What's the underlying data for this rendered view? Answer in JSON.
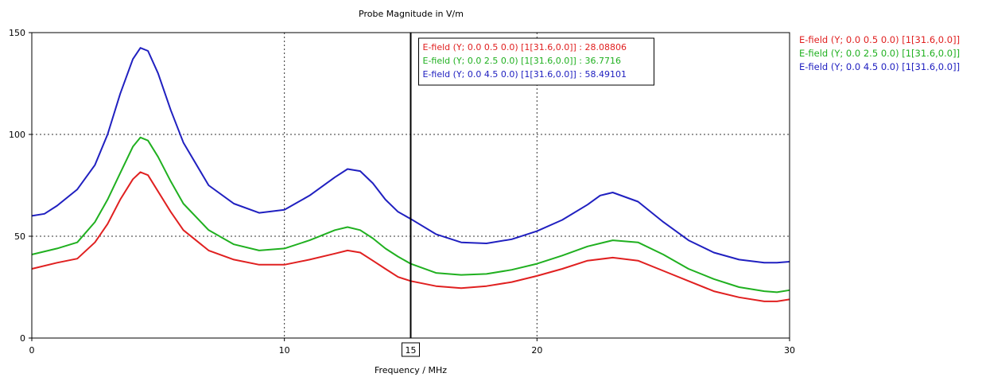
{
  "chart_data": {
    "type": "line",
    "title": "Probe Magnitude in V/m",
    "xlabel": "Frequency / MHz",
    "ylabel": "",
    "xlim": [
      0,
      30
    ],
    "ylim": [
      0,
      150
    ],
    "xticks": [
      "0",
      "10",
      "15",
      "20",
      "30"
    ],
    "yticks": [
      "0",
      "50",
      "100",
      "150"
    ],
    "grid": "dotted",
    "legend_position": "right",
    "cursor": {
      "x": 15,
      "label": "15"
    },
    "series": [
      {
        "name": "E-field (Y; 0.0 0.5 0.0) [1[31.6,0.0]]",
        "color": "#e02020",
        "cursor_value_text": "E-field (Y; 0.0 0.5 0.0) [1[31.6,0.0]] : 28.08806",
        "points": [
          [
            0,
            34
          ],
          [
            1,
            37
          ],
          [
            1.8,
            39
          ],
          [
            2.5,
            47
          ],
          [
            3,
            56
          ],
          [
            3.5,
            68
          ],
          [
            4,
            78
          ],
          [
            4.3,
            81.5
          ],
          [
            4.6,
            80
          ],
          [
            5,
            72
          ],
          [
            5.5,
            62
          ],
          [
            6,
            53
          ],
          [
            7,
            43
          ],
          [
            8,
            38.5
          ],
          [
            9,
            36
          ],
          [
            10,
            36
          ],
          [
            11,
            38.5
          ],
          [
            12,
            41.5
          ],
          [
            12.5,
            43
          ],
          [
            13,
            42
          ],
          [
            13.5,
            38
          ],
          [
            14,
            34
          ],
          [
            14.5,
            30
          ],
          [
            15,
            28
          ],
          [
            16,
            25.5
          ],
          [
            17,
            24.5
          ],
          [
            18,
            25.5
          ],
          [
            19,
            27.5
          ],
          [
            20,
            30.5
          ],
          [
            21,
            34
          ],
          [
            22,
            38
          ],
          [
            23,
            39.5
          ],
          [
            24,
            38
          ],
          [
            25,
            33
          ],
          [
            26,
            28
          ],
          [
            27,
            23
          ],
          [
            28,
            20
          ],
          [
            29,
            18
          ],
          [
            29.5,
            18
          ],
          [
            30,
            19
          ]
        ]
      },
      {
        "name": "E-field (Y; 0.0 2.5 0.0) [1[31.6,0.0]]",
        "color": "#20b020",
        "cursor_value_text": "E-field (Y; 0.0 2.5 0.0) [1[31.6,0.0]] : 36.7716",
        "points": [
          [
            0,
            41
          ],
          [
            1,
            44
          ],
          [
            1.8,
            47
          ],
          [
            2.5,
            57
          ],
          [
            3,
            68
          ],
          [
            3.5,
            81
          ],
          [
            4,
            94
          ],
          [
            4.3,
            98.5
          ],
          [
            4.6,
            97
          ],
          [
            5,
            89
          ],
          [
            5.5,
            77
          ],
          [
            6,
            66
          ],
          [
            7,
            53
          ],
          [
            8,
            46
          ],
          [
            9,
            43
          ],
          [
            10,
            44
          ],
          [
            11,
            48
          ],
          [
            12,
            53
          ],
          [
            12.5,
            54.5
          ],
          [
            13,
            53
          ],
          [
            13.5,
            49
          ],
          [
            14,
            44
          ],
          [
            14.5,
            40
          ],
          [
            15,
            36.5
          ],
          [
            16,
            32
          ],
          [
            17,
            31
          ],
          [
            18,
            31.5
          ],
          [
            19,
            33.5
          ],
          [
            20,
            36.5
          ],
          [
            21,
            40.5
          ],
          [
            22,
            45
          ],
          [
            23,
            48
          ],
          [
            24,
            47
          ],
          [
            25,
            41
          ],
          [
            26,
            34
          ],
          [
            27,
            29
          ],
          [
            28,
            25
          ],
          [
            29,
            23
          ],
          [
            29.5,
            22.5
          ],
          [
            30,
            23.5
          ]
        ]
      },
      {
        "name": "E-field (Y; 0.0 4.5 0.0) [1[31.6,0.0]]",
        "color": "#2020c0",
        "cursor_value_text": "E-field (Y; 0.0 4.5 0.0) [1[31.6,0.0]] : 58.49101",
        "points": [
          [
            0,
            60
          ],
          [
            0.5,
            61
          ],
          [
            1,
            65
          ],
          [
            1.8,
            73
          ],
          [
            2.5,
            85
          ],
          [
            3,
            100
          ],
          [
            3.5,
            120
          ],
          [
            4,
            137
          ],
          [
            4.3,
            142.5
          ],
          [
            4.6,
            141
          ],
          [
            5,
            130
          ],
          [
            5.5,
            112
          ],
          [
            6,
            96
          ],
          [
            7,
            75
          ],
          [
            8,
            66
          ],
          [
            9,
            61.5
          ],
          [
            10,
            63
          ],
          [
            11,
            70
          ],
          [
            12,
            79
          ],
          [
            12.5,
            83
          ],
          [
            13,
            82
          ],
          [
            13.5,
            76
          ],
          [
            14,
            68
          ],
          [
            14.5,
            62
          ],
          [
            15,
            58.5
          ],
          [
            16,
            51
          ],
          [
            17,
            47
          ],
          [
            18,
            46.5
          ],
          [
            19,
            48.5
          ],
          [
            20,
            52.5
          ],
          [
            21,
            58
          ],
          [
            22,
            65.5
          ],
          [
            22.5,
            70
          ],
          [
            23,
            71.5
          ],
          [
            24,
            67
          ],
          [
            25,
            57
          ],
          [
            26,
            48
          ],
          [
            27,
            42
          ],
          [
            28,
            38.5
          ],
          [
            29,
            37
          ],
          [
            29.5,
            37
          ],
          [
            30,
            37.5
          ]
        ]
      }
    ]
  }
}
